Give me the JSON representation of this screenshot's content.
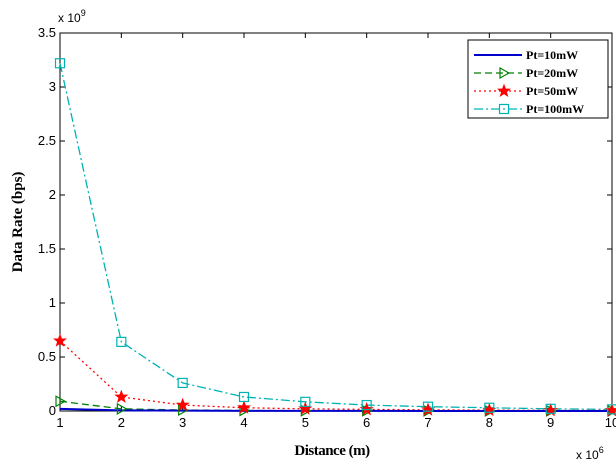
{
  "chart_data": {
    "type": "line",
    "title": "",
    "xlabel": "Distance (m)",
    "ylabel": "Data Rate (bps)",
    "x_exponent_label": "x 10",
    "x_exponent_power": "6",
    "y_exponent_label": "x 10",
    "y_exponent_power": "9",
    "xlim": [
      1,
      10
    ],
    "ylim": [
      0,
      3.5
    ],
    "x_ticks": [
      1,
      2,
      3,
      4,
      5,
      6,
      7,
      8,
      9,
      10
    ],
    "x_tick_labels": [
      "1",
      "2",
      "3",
      "4",
      "5",
      "6",
      "7",
      "8",
      "9",
      "10"
    ],
    "y_ticks": [
      0,
      0.5,
      1,
      1.5,
      2,
      2.5,
      3,
      3.5
    ],
    "y_tick_labels": [
      "0",
      "0.5",
      "1",
      "1.5",
      "2",
      "2.5",
      "3",
      "3.5"
    ],
    "grid": false,
    "legend_position": "top-right",
    "x": [
      1,
      2,
      3,
      4,
      5,
      6,
      7,
      8,
      9,
      10
    ],
    "series": [
      {
        "name": "Pt=10mW",
        "color": "#0000cc",
        "dash": "solid",
        "marker": "none",
        "values": [
          0.02,
          0.006,
          0.003,
          0.0015,
          0.001,
          0.0007,
          0.0005,
          0.0004,
          0.0003,
          0.0002
        ]
      },
      {
        "name": "Pt=20mW",
        "color": "#008000",
        "dash": "dashed",
        "marker": "triangle-right",
        "values": [
          0.09,
          0.02,
          0.009,
          0.005,
          0.003,
          0.002,
          0.0015,
          0.001,
          0.0008,
          0.0006
        ]
      },
      {
        "name": "Pt=50mW",
        "color": "#ff0000",
        "dash": "dotted",
        "marker": "star",
        "values": [
          0.65,
          0.13,
          0.055,
          0.03,
          0.02,
          0.015,
          0.011,
          0.008,
          0.006,
          0.005
        ]
      },
      {
        "name": "Pt=100mW",
        "color": "#00b3b3",
        "dash": "dashdot",
        "marker": "square",
        "values": [
          3.22,
          0.64,
          0.26,
          0.13,
          0.085,
          0.055,
          0.04,
          0.03,
          0.02,
          0.015
        ]
      }
    ]
  }
}
